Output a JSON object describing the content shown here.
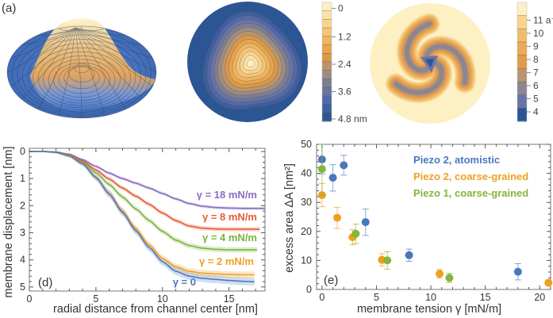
{
  "panel_a": {
    "label": "(a)",
    "surface_plot": {
      "description": "3D membrane surface, dome shape"
    },
    "contour_displacement": {
      "colorbar_ticks": [
        "0",
        "1.2",
        "2.4",
        "3.6",
        "4.8 nm"
      ],
      "colorbar_levels": 14,
      "colors": [
        "#fdf0c2",
        "#fbe3a8",
        "#f8d48e",
        "#f4c478",
        "#efb464",
        "#e8a450",
        "#d9994a",
        "#bb9470",
        "#9b8d84",
        "#7e7e92",
        "#6a74a4",
        "#5169a8",
        "#3d5f9e",
        "#2c5594"
      ]
    },
    "contour_curvature": {
      "colorbar_ticks": [
        "11 a⁻²",
        "10",
        "9",
        "8",
        "7",
        "6",
        "5",
        "4"
      ],
      "colors": [
        "#fdf0c2",
        "#f8d48e",
        "#f0bc6e",
        "#eaa95a",
        "#e29b48",
        "#bb9470",
        "#8d8690",
        "#6a74a4",
        "#2c5594"
      ]
    }
  },
  "chart_data": [
    {
      "type": "line",
      "panel_label": "(d)",
      "xlabel": "radial distance from channel center  [nm]",
      "ylabel": "membrane displacement [nm]",
      "xlim": [
        0,
        17.7
      ],
      "ylim": [
        0,
        5.15
      ],
      "y_inverted": true,
      "xticks": [
        0,
        5,
        10,
        15
      ],
      "yticks": [
        0,
        1,
        2,
        3,
        4,
        5
      ],
      "x": [
        0,
        1,
        2,
        3,
        4,
        5,
        6,
        7,
        8,
        9,
        10,
        11,
        12,
        13,
        14,
        15,
        16,
        17
      ],
      "series": [
        {
          "name": "γ = 18 mN/m",
          "color": "#8a6cc4",
          "xmax": 17.7,
          "values": [
            0,
            0,
            0.02,
            0.1,
            0.3,
            0.55,
            0.8,
            1.0,
            1.17,
            1.35,
            1.55,
            1.75,
            1.92,
            2.02,
            2.07,
            2.09,
            2.1,
            2.1
          ]
        },
        {
          "name": "γ = 8 mN/m",
          "color": "#e85a35",
          "xmax": 17.3,
          "values": [
            0,
            0,
            0.02,
            0.12,
            0.35,
            0.68,
            1.02,
            1.35,
            1.65,
            1.95,
            2.27,
            2.55,
            2.75,
            2.83,
            2.86,
            2.87,
            2.87,
            2.87
          ]
        },
        {
          "name": "γ = 4 mN/m",
          "color": "#7ab33e",
          "xmax": 17.1,
          "values": [
            0,
            0,
            0.02,
            0.14,
            0.4,
            0.78,
            1.22,
            1.68,
            2.12,
            2.55,
            2.95,
            3.27,
            3.47,
            3.57,
            3.61,
            3.63,
            3.63,
            3.63
          ]
        },
        {
          "name": "γ = 2 mN/m",
          "color": "#eea020",
          "xmax": 16.9,
          "values": [
            0,
            0,
            0.03,
            0.16,
            0.45,
            0.95,
            1.55,
            2.2,
            2.85,
            3.45,
            3.95,
            4.25,
            4.42,
            4.49,
            4.52,
            4.54,
            4.55,
            4.55
          ]
        },
        {
          "name": "γ = 0",
          "color": "#4a78be",
          "xmax": 16.9,
          "values": [
            0,
            0,
            0.03,
            0.16,
            0.45,
            0.96,
            1.57,
            2.25,
            2.93,
            3.55,
            4.07,
            4.42,
            4.6,
            4.68,
            4.72,
            4.76,
            4.79,
            4.81
          ]
        }
      ]
    },
    {
      "type": "scatter",
      "panel_label": "(e)",
      "xlabel": "membrane tension γ  [mN/m]",
      "ylabel": "excess area ΔA  [nm²]",
      "xlim": [
        -0.5,
        21
      ],
      "ylim": [
        0,
        50
      ],
      "xticks": [
        0,
        5,
        10,
        15,
        20
      ],
      "yticks": [
        0,
        10,
        20,
        30,
        40,
        50
      ],
      "legend_position": "top-right",
      "series": [
        {
          "name": "Piezo 2, atomistic",
          "color": "#4a78be",
          "points": [
            {
              "x": 0,
              "y": 44.8,
              "err_lo": 5.0,
              "err_hi": 5.2
            },
            {
              "x": 1.0,
              "y": 38.5,
              "err_lo": 4.6,
              "err_hi": 4.5
            },
            {
              "x": 2.0,
              "y": 42.8,
              "err_lo": 3.4,
              "err_hi": 3.4
            },
            {
              "x": 4.0,
              "y": 23.2,
              "err_lo": 4.6,
              "err_hi": 4.5
            },
            {
              "x": 8.0,
              "y": 11.8,
              "err_lo": 2.1,
              "err_hi": 2.1
            },
            {
              "x": 18.0,
              "y": 6.1,
              "err_lo": 2.8,
              "err_hi": 2.8
            }
          ]
        },
        {
          "name": "Piezo 2, coarse-grained",
          "color": "#eea020",
          "points": [
            {
              "x": 0,
              "y": 32.5,
              "err_lo": 4.0,
              "err_hi": 4.0
            },
            {
              "x": 1.4,
              "y": 24.7,
              "err_lo": 3.7,
              "err_hi": 3.6
            },
            {
              "x": 2.8,
              "y": 18.0,
              "err_lo": 2.6,
              "err_hi": 2.6
            },
            {
              "x": 5.5,
              "y": 10.2,
              "err_lo": 2.1,
              "err_hi": 2.1
            },
            {
              "x": 10.8,
              "y": 5.4,
              "err_lo": 1.5,
              "err_hi": 1.5
            },
            {
              "x": 20.8,
              "y": 2.3,
              "err_lo": 0.4,
              "err_hi": 0.4
            }
          ]
        },
        {
          "name": "Piezo 1, coarse-grained",
          "color": "#85b53a",
          "points": [
            {
              "x": 0,
              "y": 41.5,
              "err_lo": 9.0,
              "err_hi": 8.5
            },
            {
              "x": 3.1,
              "y": 19.2,
              "err_lo": 3.4,
              "err_hi": 3.3
            },
            {
              "x": 6.0,
              "y": 10.0,
              "err_lo": 3.0,
              "err_hi": 3.0
            },
            {
              "x": 11.7,
              "y": 4.0,
              "err_lo": 1.6,
              "err_hi": 1.6
            }
          ]
        }
      ]
    }
  ]
}
